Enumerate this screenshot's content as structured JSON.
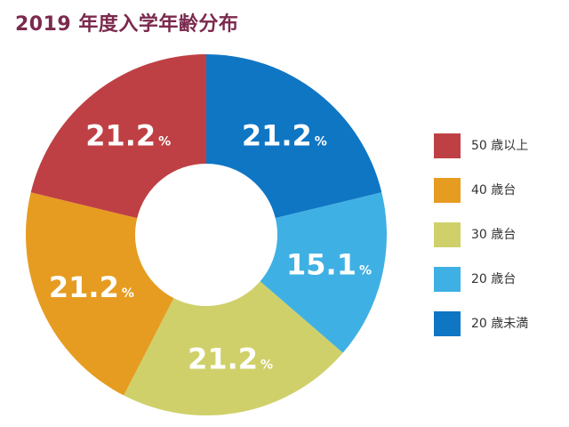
{
  "title": "2019 年度入学年齢分布",
  "chart_data": {
    "type": "pie",
    "title": "2019 年度入学年齢分布",
    "unit": "%",
    "legend_position": "right",
    "categories": [
      "50 歳以上",
      "40 歳台",
      "30 歳台",
      "20 歳台",
      "20 歳未満"
    ],
    "series": [
      {
        "values": [
          21.2,
          21.2,
          21.2,
          15.1,
          21.2
        ],
        "labels": [
          "21.2",
          "21.2",
          "21.2",
          "15.1",
          "21.2"
        ]
      }
    ],
    "colors": [
      "#bf4044",
      "#e69c21",
      "#cfd06a",
      "#3fb0e3",
      "#0f76c4"
    ]
  }
}
